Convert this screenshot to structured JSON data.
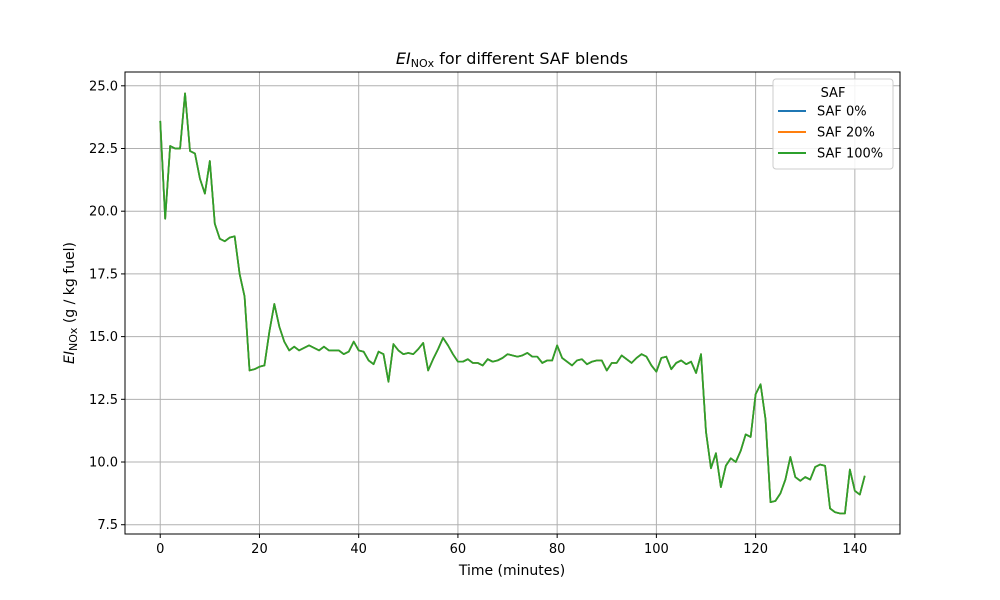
{
  "chart_data": {
    "type": "line",
    "title": {
      "main": "EI",
      "sub": "NOx",
      "rest": " for different SAF blends"
    },
    "xlabel": "Time (minutes)",
    "ylabel": {
      "main": "EI",
      "sub": "NOx",
      "rest": " (g / kg fuel)"
    },
    "xlim": [
      -7.1,
      149.1
    ],
    "ylim": [
      7.13,
      25.55
    ],
    "xticks": [
      0,
      20,
      40,
      60,
      80,
      100,
      120,
      140
    ],
    "xtick_labels": [
      "0",
      "20",
      "40",
      "60",
      "80",
      "100",
      "120",
      "140"
    ],
    "yticks": [
      7.5,
      10.0,
      12.5,
      15.0,
      17.5,
      20.0,
      22.5,
      25.0
    ],
    "ytick_labels": [
      "7.5",
      "10.0",
      "12.5",
      "15.0",
      "17.5",
      "20.0",
      "22.5",
      "25.0"
    ],
    "grid": true,
    "legend": {
      "title": "SAF",
      "placement": "upper right"
    },
    "series_values": [
      23.6,
      19.7,
      22.6,
      22.5,
      22.5,
      24.7,
      22.4,
      22.3,
      21.3,
      20.7,
      22.0,
      19.5,
      18.9,
      18.8,
      18.95,
      19.0,
      17.5,
      16.6,
      13.65,
      13.7,
      13.8,
      13.85,
      15.2,
      16.3,
      15.4,
      14.8,
      14.45,
      14.6,
      14.45,
      14.55,
      14.65,
      14.55,
      14.45,
      14.6,
      14.45,
      14.45,
      14.45,
      14.3,
      14.4,
      14.8,
      14.45,
      14.4,
      14.05,
      13.9,
      14.4,
      14.3,
      13.2,
      14.7,
      14.45,
      14.3,
      14.35,
      14.3,
      14.5,
      14.75,
      13.65,
      14.1,
      14.5,
      14.95,
      14.65,
      14.3,
      14.0,
      14.0,
      14.1,
      13.95,
      13.95,
      13.85,
      14.1,
      14.0,
      14.05,
      14.15,
      14.3,
      14.25,
      14.2,
      14.25,
      14.35,
      14.2,
      14.2,
      13.95,
      14.05,
      14.05,
      14.65,
      14.15,
      14.0,
      13.85,
      14.05,
      14.1,
      13.9,
      14.0,
      14.05,
      14.05,
      13.65,
      13.95,
      13.95,
      14.25,
      14.1,
      13.95,
      14.15,
      14.3,
      14.2,
      13.85,
      13.6,
      14.15,
      14.2,
      13.7,
      13.95,
      14.05,
      13.9,
      14.0,
      13.55,
      14.3,
      11.2,
      9.75,
      10.35,
      9.0,
      9.85,
      10.15,
      10.0,
      10.45,
      11.1,
      11.0,
      12.7,
      13.1,
      11.7,
      8.4,
      8.45,
      8.75,
      9.3,
      10.2,
      9.4,
      9.25,
      9.4,
      9.3,
      9.8,
      9.9,
      9.85,
      8.15,
      8.0,
      7.95,
      7.95,
      9.7,
      8.85,
      8.7,
      9.45
    ],
    "series": [
      {
        "name": "SAF 0%",
        "color": "#1f77b4"
      },
      {
        "name": "SAF 20%",
        "color": "#ff7f0e"
      },
      {
        "name": "SAF 100%",
        "color": "#2ca02c"
      }
    ]
  }
}
